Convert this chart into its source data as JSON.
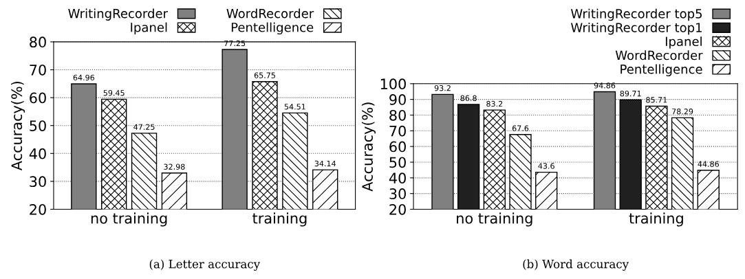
{
  "chart_data": [
    {
      "type": "bar",
      "ylabel": "Accuracy(%)",
      "categories": [
        "no training",
        "training"
      ],
      "series": [
        {
          "name": "WritingRecorder",
          "color": "#808080",
          "values": [
            64.96,
            77.25
          ]
        },
        {
          "name": "Ipanel",
          "color": "#ffffff",
          "values": [
            59.45,
            65.75
          ]
        },
        {
          "name": "WordRecorder",
          "color": "#ffffff",
          "values": [
            47.25,
            54.51
          ]
        },
        {
          "name": "Pentelligence",
          "color": "#ffffff",
          "values": [
            32.98,
            34.14
          ]
        }
      ],
      "ylim": [
        20,
        80
      ],
      "yticks": [
        20,
        30,
        40,
        50,
        60,
        70,
        80
      ],
      "grid": "y",
      "legend": "top",
      "data_labels": true,
      "annotations": [
        "(a) Letter accuracy"
      ]
    },
    {
      "type": "bar",
      "ylabel": "Accuracy(%)",
      "categories": [
        "no training",
        "training"
      ],
      "series": [
        {
          "name": "WritingRecorder top5",
          "color": "#808080",
          "values": [
            93.2,
            94.86
          ]
        },
        {
          "name": "WritingRecorder top1",
          "color": "#202020",
          "values": [
            86.8,
            89.71
          ]
        },
        {
          "name": "Ipanel",
          "color": "#ffffff",
          "values": [
            83.2,
            85.71
          ]
        },
        {
          "name": "WordRecorder",
          "color": "#ffffff",
          "values": [
            67.6,
            78.29
          ]
        },
        {
          "name": "Pentelligence",
          "color": "#ffffff",
          "values": [
            43.6,
            44.86
          ]
        }
      ],
      "ylim": [
        20,
        100
      ],
      "yticks": [
        20,
        30,
        40,
        50,
        60,
        70,
        80,
        90,
        100
      ],
      "grid": "y",
      "legend": "top right",
      "data_labels": true,
      "annotations": [
        "(b) Word accuracy"
      ]
    }
  ]
}
